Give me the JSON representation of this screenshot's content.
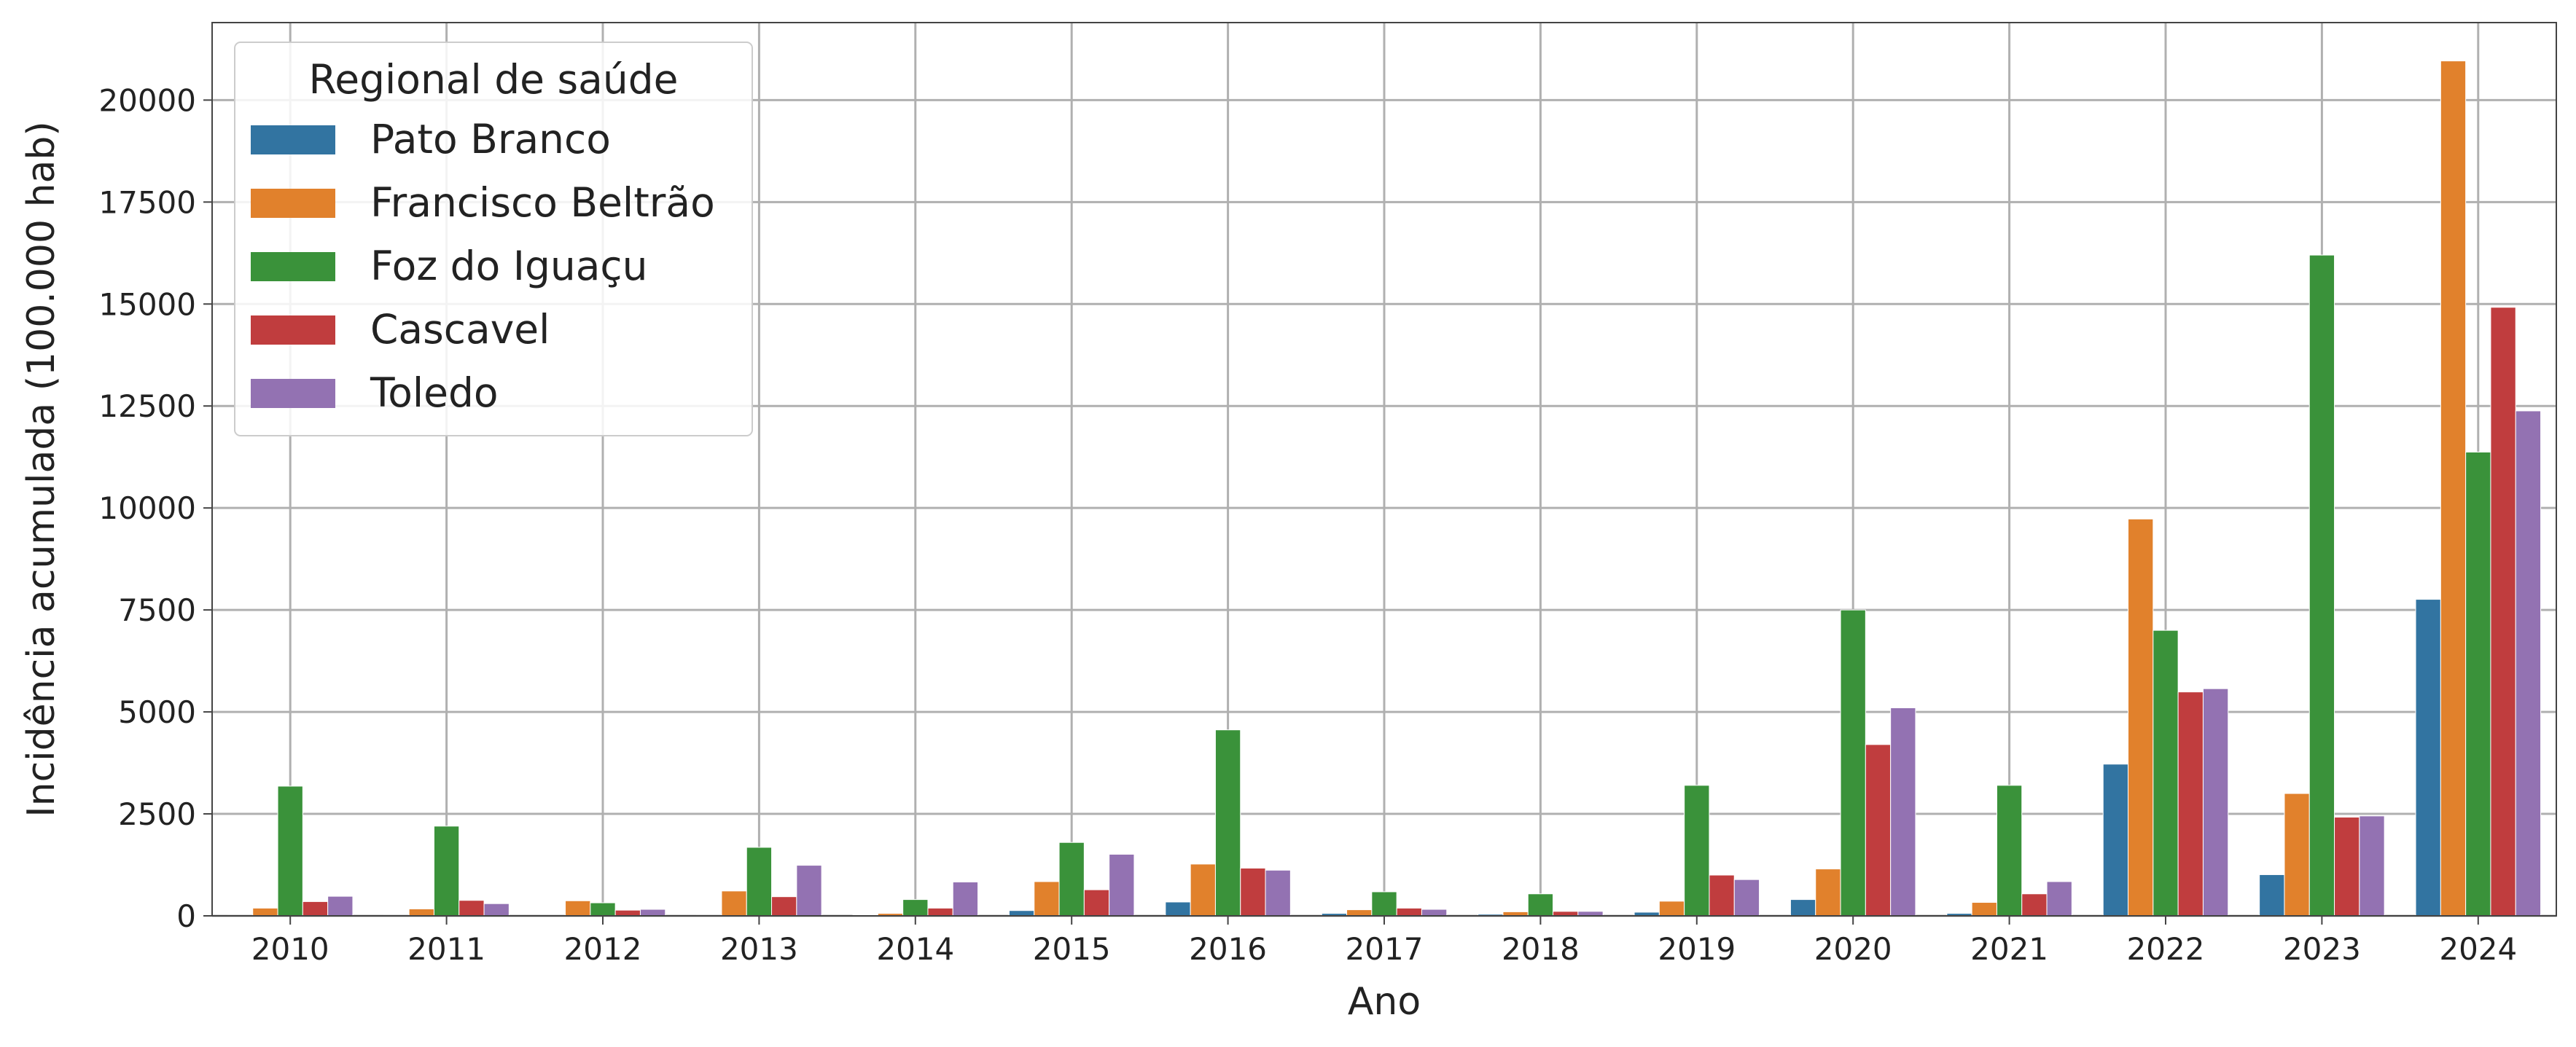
{
  "chart_data": {
    "type": "bar",
    "xlabel": "Ano",
    "ylabel": "Incidência acumulada (100.000 hab)",
    "categories": [
      "2010",
      "2011",
      "2012",
      "2013",
      "2014",
      "2015",
      "2016",
      "2017",
      "2018",
      "2019",
      "2020",
      "2021",
      "2022",
      "2023",
      "2024"
    ],
    "ylim": [
      0,
      21900
    ],
    "yticks": [
      0,
      2500,
      5000,
      7500,
      10000,
      12500,
      15000,
      17500,
      20000
    ],
    "grid": true,
    "legend": {
      "title": "Regional de saúde",
      "placement": "top-left"
    },
    "series": [
      {
        "name": "Pato Branco",
        "color": "#3274a1",
        "values": [
          10,
          10,
          10,
          10,
          20,
          130,
          340,
          60,
          40,
          90,
          400,
          60,
          3720,
          1010,
          7760
        ]
      },
      {
        "name": "Francisco Beltrão",
        "color": "#e1812c",
        "values": [
          190,
          170,
          370,
          610,
          60,
          840,
          1270,
          150,
          100,
          360,
          1150,
          330,
          9730,
          3000,
          20960
        ]
      },
      {
        "name": "Foz do Iguaçu",
        "color": "#3a923a",
        "values": [
          3180,
          2200,
          320,
          1680,
          400,
          1800,
          4560,
          590,
          540,
          3200,
          7500,
          3200,
          7000,
          16200,
          11370
        ]
      },
      {
        "name": "Cascavel",
        "color": "#c03d3e",
        "values": [
          350,
          380,
          140,
          470,
          190,
          640,
          1170,
          190,
          110,
          1000,
          4200,
          540,
          5490,
          2420,
          14920
        ]
      },
      {
        "name": "Toledo",
        "color": "#9372b2",
        "values": [
          480,
          300,
          160,
          1240,
          830,
          1510,
          1120,
          160,
          110,
          890,
          5100,
          840,
          5570,
          2450,
          12380
        ]
      }
    ]
  }
}
